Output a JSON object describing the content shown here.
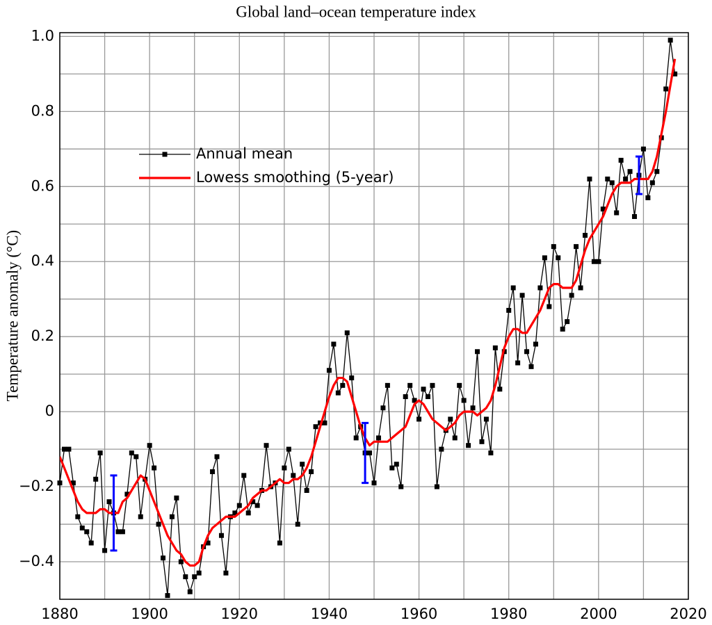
{
  "chart_data": {
    "type": "line",
    "title": "Global land–ocean temperature index",
    "y_label": "Temperature anomaly (°C)",
    "x": [
      1880,
      1881,
      1882,
      1883,
      1884,
      1885,
      1886,
      1887,
      1888,
      1889,
      1890,
      1891,
      1892,
      1893,
      1894,
      1895,
      1896,
      1897,
      1898,
      1899,
      1900,
      1901,
      1902,
      1903,
      1904,
      1905,
      1906,
      1907,
      1908,
      1909,
      1910,
      1911,
      1912,
      1913,
      1914,
      1915,
      1916,
      1917,
      1918,
      1919,
      1920,
      1921,
      1922,
      1923,
      1924,
      1925,
      1926,
      1927,
      1928,
      1929,
      1930,
      1931,
      1932,
      1933,
      1934,
      1935,
      1936,
      1937,
      1938,
      1939,
      1940,
      1941,
      1942,
      1943,
      1944,
      1945,
      1946,
      1947,
      1948,
      1949,
      1950,
      1951,
      1952,
      1953,
      1954,
      1955,
      1956,
      1957,
      1958,
      1959,
      1960,
      1961,
      1962,
      1963,
      1964,
      1965,
      1966,
      1967,
      1968,
      1969,
      1970,
      1971,
      1972,
      1973,
      1974,
      1975,
      1976,
      1977,
      1978,
      1979,
      1980,
      1981,
      1982,
      1983,
      1984,
      1985,
      1986,
      1987,
      1988,
      1989,
      1990,
      1991,
      1992,
      1993,
      1994,
      1995,
      1996,
      1997,
      1998,
      1999,
      2000,
      2001,
      2002,
      2003,
      2004,
      2005,
      2006,
      2007,
      2008,
      2009,
      2010,
      2011,
      2012,
      2013,
      2014,
      2015,
      2016,
      2017
    ],
    "series": [
      {
        "name": "Annual mean",
        "color": "#000000",
        "marker": "square",
        "values": [
          -0.19,
          -0.1,
          -0.1,
          -0.19,
          -0.28,
          -0.31,
          -0.32,
          -0.35,
          -0.18,
          -0.11,
          -0.37,
          -0.24,
          -0.27,
          -0.32,
          -0.32,
          -0.22,
          -0.11,
          -0.12,
          -0.28,
          -0.18,
          -0.09,
          -0.15,
          -0.3,
          -0.39,
          -0.49,
          -0.28,
          -0.23,
          -0.4,
          -0.44,
          -0.48,
          -0.44,
          -0.43,
          -0.36,
          -0.35,
          -0.16,
          -0.12,
          -0.33,
          -0.43,
          -0.28,
          -0.27,
          -0.25,
          -0.17,
          -0.27,
          -0.24,
          -0.25,
          -0.21,
          -0.09,
          -0.2,
          -0.19,
          -0.35,
          -0.15,
          -0.1,
          -0.17,
          -0.3,
          -0.14,
          -0.21,
          -0.16,
          -0.04,
          -0.03,
          -0.03,
          0.11,
          0.18,
          0.05,
          0.07,
          0.21,
          0.09,
          -0.07,
          -0.04,
          -0.11,
          -0.11,
          -0.19,
          -0.07,
          0.01,
          0.07,
          -0.15,
          -0.14,
          -0.2,
          0.04,
          0.07,
          0.03,
          -0.02,
          0.06,
          0.04,
          0.07,
          -0.2,
          -0.1,
          -0.05,
          -0.02,
          -0.07,
          0.07,
          0.03,
          -0.09,
          0.01,
          0.16,
          -0.08,
          -0.02,
          -0.11,
          0.17,
          0.06,
          0.16,
          0.27,
          0.33,
          0.13,
          0.31,
          0.16,
          0.12,
          0.18,
          0.33,
          0.41,
          0.28,
          0.44,
          0.41,
          0.22,
          0.24,
          0.31,
          0.44,
          0.33,
          0.47,
          0.62,
          0.4,
          0.4,
          0.54,
          0.62,
          0.61,
          0.53,
          0.67,
          0.62,
          0.64,
          0.52,
          0.63,
          0.7,
          0.57,
          0.61,
          0.64,
          0.73,
          0.86,
          0.99,
          0.9
        ]
      },
      {
        "name": "Lowess smoothing (5-year)",
        "color": "#ff0000",
        "values": [
          -0.12,
          -0.15,
          -0.18,
          -0.21,
          -0.24,
          -0.26,
          -0.27,
          -0.27,
          -0.27,
          -0.26,
          -0.26,
          -0.27,
          -0.27,
          -0.27,
          -0.24,
          -0.23,
          -0.21,
          -0.19,
          -0.17,
          -0.18,
          -0.21,
          -0.24,
          -0.27,
          -0.3,
          -0.33,
          -0.35,
          -0.37,
          -0.38,
          -0.4,
          -0.41,
          -0.41,
          -0.4,
          -0.36,
          -0.33,
          -0.31,
          -0.3,
          -0.29,
          -0.28,
          -0.28,
          -0.28,
          -0.27,
          -0.26,
          -0.25,
          -0.23,
          -0.22,
          -0.21,
          -0.21,
          -0.2,
          -0.19,
          -0.18,
          -0.19,
          -0.19,
          -0.18,
          -0.18,
          -0.17,
          -0.15,
          -0.12,
          -0.08,
          -0.04,
          0.0,
          0.04,
          0.07,
          0.09,
          0.09,
          0.08,
          0.04,
          0.0,
          -0.04,
          -0.07,
          -0.09,
          -0.08,
          -0.08,
          -0.08,
          -0.08,
          -0.07,
          -0.06,
          -0.05,
          -0.04,
          -0.01,
          0.02,
          0.03,
          0.02,
          0.0,
          -0.02,
          -0.03,
          -0.04,
          -0.05,
          -0.04,
          -0.03,
          -0.01,
          0.0,
          0.0,
          0.0,
          -0.01,
          0.0,
          0.01,
          0.03,
          0.07,
          0.12,
          0.17,
          0.2,
          0.22,
          0.22,
          0.21,
          0.21,
          0.23,
          0.25,
          0.27,
          0.3,
          0.33,
          0.34,
          0.34,
          0.33,
          0.33,
          0.33,
          0.35,
          0.39,
          0.43,
          0.46,
          0.48,
          0.5,
          0.52,
          0.55,
          0.58,
          0.6,
          0.61,
          0.61,
          0.61,
          0.62,
          0.62,
          0.62,
          0.62,
          0.64,
          0.68,
          0.74,
          0.8,
          0.87,
          0.94
        ]
      }
    ],
    "error_bars": {
      "x": [
        1892,
        1948,
        2009
      ],
      "values": [
        -0.27,
        -0.11,
        0.63
      ],
      "errors": [
        0.1,
        0.08,
        0.05
      ],
      "color": "#0000ff"
    },
    "xlim": [
      1880,
      2020
    ],
    "xticks": [
      1880,
      1900,
      1920,
      1940,
      1960,
      1980,
      2000,
      2020
    ],
    "ylim": [
      -0.5,
      1.01
    ],
    "yticks": [
      {
        "value": -0.4,
        "label": "−0.4"
      },
      {
        "value": -0.2,
        "label": "−0.2"
      },
      0,
      0.2,
      0.4,
      0.6,
      0.8,
      {
        "value": 1.0,
        "label": "1.0"
      }
    ],
    "grid": true
  }
}
